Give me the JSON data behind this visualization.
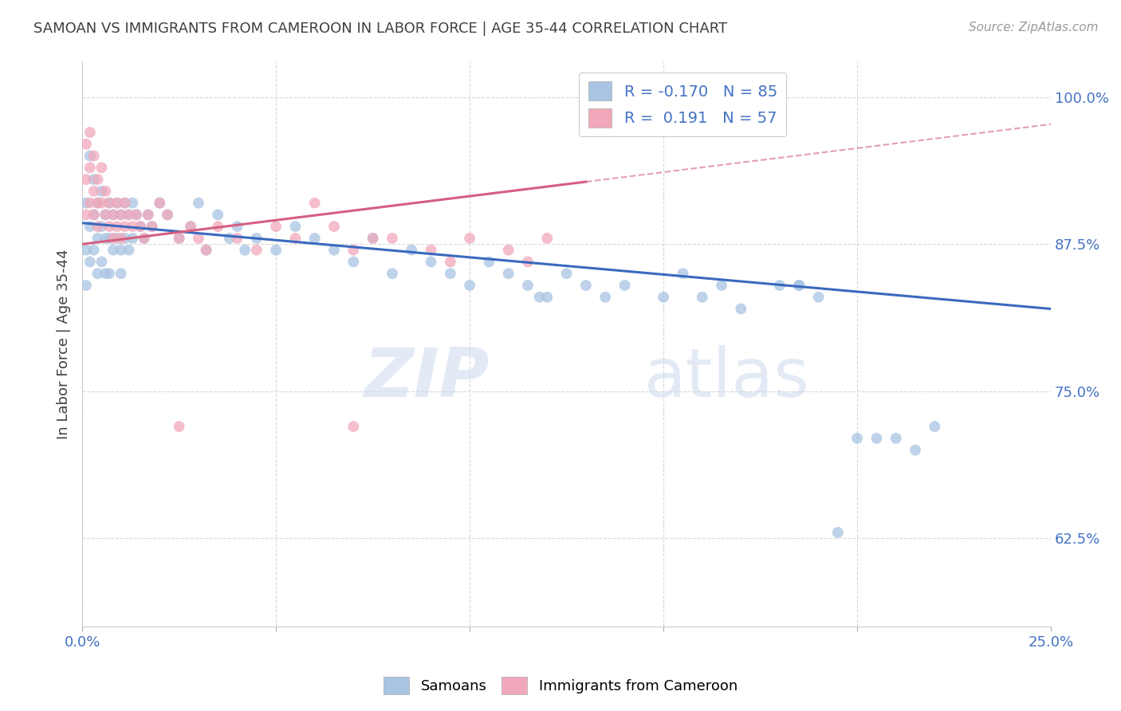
{
  "title": "SAMOAN VS IMMIGRANTS FROM CAMEROON IN LABOR FORCE | AGE 35-44 CORRELATION CHART",
  "source": "Source: ZipAtlas.com",
  "ylabel": "In Labor Force | Age 35-44",
  "blue_r": -0.17,
  "blue_n": 85,
  "pink_r": 0.191,
  "pink_n": 57,
  "legend_label_blue": "Samoans",
  "legend_label_pink": "Immigrants from Cameroon",
  "watermark_zip": "ZIP",
  "watermark_atlas": "atlas",
  "blue_color": "#a8c4e2",
  "pink_color": "#f2a8bb",
  "blue_line_color": "#3a6abf",
  "pink_line_color": "#d45f80",
  "axis_label_color": "#4472c4",
  "title_color": "#404040",
  "xlim": [
    0.0,
    0.25
  ],
  "ylim": [
    0.55,
    1.03
  ],
  "yticks": [
    0.625,
    0.75,
    0.875,
    1.0
  ],
  "ytick_labels": [
    "62.5%",
    "75.0%",
    "87.5%",
    "100.0%"
  ],
  "xticks": [
    0.0,
    0.05,
    0.1,
    0.15,
    0.2,
    0.25
  ],
  "xtick_labels": [
    "0.0%",
    "",
    "",
    "",
    "",
    "25.0%"
  ],
  "blue_x": [
    0.001,
    0.001,
    0.001,
    0.002,
    0.002,
    0.002,
    0.003,
    0.003,
    0.003,
    0.004,
    0.004,
    0.004,
    0.005,
    0.005,
    0.005,
    0.006,
    0.006,
    0.006,
    0.007,
    0.007,
    0.007,
    0.008,
    0.008,
    0.009,
    0.009,
    0.01,
    0.01,
    0.01,
    0.011,
    0.011,
    0.012,
    0.012,
    0.013,
    0.013,
    0.014,
    0.015,
    0.016,
    0.017,
    0.018,
    0.02,
    0.022,
    0.025,
    0.028,
    0.03,
    0.032,
    0.035,
    0.038,
    0.04,
    0.042,
    0.045,
    0.05,
    0.055,
    0.06,
    0.065,
    0.07,
    0.075,
    0.08,
    0.085,
    0.09,
    0.095,
    0.1,
    0.105,
    0.11,
    0.115,
    0.12,
    0.125,
    0.13,
    0.135,
    0.14,
    0.15,
    0.155,
    0.16,
    0.165,
    0.17,
    0.18,
    0.185,
    0.19,
    0.2,
    0.205,
    0.21,
    0.215,
    0.22,
    0.185,
    0.195,
    0.118
  ],
  "blue_y": [
    0.91,
    0.87,
    0.84,
    0.95,
    0.89,
    0.86,
    0.93,
    0.9,
    0.87,
    0.91,
    0.88,
    0.85,
    0.92,
    0.89,
    0.86,
    0.9,
    0.88,
    0.85,
    0.91,
    0.88,
    0.85,
    0.9,
    0.87,
    0.91,
    0.88,
    0.9,
    0.87,
    0.85,
    0.91,
    0.88,
    0.9,
    0.87,
    0.91,
    0.88,
    0.9,
    0.89,
    0.88,
    0.9,
    0.89,
    0.91,
    0.9,
    0.88,
    0.89,
    0.91,
    0.87,
    0.9,
    0.88,
    0.89,
    0.87,
    0.88,
    0.87,
    0.89,
    0.88,
    0.87,
    0.86,
    0.88,
    0.85,
    0.87,
    0.86,
    0.85,
    0.84,
    0.86,
    0.85,
    0.84,
    0.83,
    0.85,
    0.84,
    0.83,
    0.84,
    0.83,
    0.85,
    0.83,
    0.84,
    0.82,
    0.84,
    0.84,
    0.83,
    0.71,
    0.71,
    0.71,
    0.7,
    0.72,
    0.84,
    0.63,
    0.83
  ],
  "pink_x": [
    0.001,
    0.001,
    0.001,
    0.002,
    0.002,
    0.002,
    0.003,
    0.003,
    0.003,
    0.004,
    0.004,
    0.004,
    0.005,
    0.005,
    0.006,
    0.006,
    0.007,
    0.007,
    0.008,
    0.008,
    0.009,
    0.009,
    0.01,
    0.01,
    0.011,
    0.011,
    0.012,
    0.013,
    0.014,
    0.015,
    0.016,
    0.017,
    0.018,
    0.02,
    0.022,
    0.025,
    0.028,
    0.03,
    0.032,
    0.035,
    0.04,
    0.045,
    0.05,
    0.055,
    0.06,
    0.065,
    0.07,
    0.075,
    0.08,
    0.09,
    0.095,
    0.1,
    0.11,
    0.115,
    0.12,
    0.025,
    0.07
  ],
  "pink_y": [
    0.96,
    0.93,
    0.9,
    0.97,
    0.94,
    0.91,
    0.95,
    0.92,
    0.9,
    0.93,
    0.91,
    0.89,
    0.94,
    0.91,
    0.92,
    0.9,
    0.91,
    0.89,
    0.9,
    0.88,
    0.91,
    0.89,
    0.9,
    0.88,
    0.91,
    0.89,
    0.9,
    0.89,
    0.9,
    0.89,
    0.88,
    0.9,
    0.89,
    0.91,
    0.9,
    0.88,
    0.89,
    0.88,
    0.87,
    0.89,
    0.88,
    0.87,
    0.89,
    0.88,
    0.91,
    0.89,
    0.87,
    0.88,
    0.88,
    0.87,
    0.86,
    0.88,
    0.87,
    0.86,
    0.88,
    0.72,
    0.72
  ],
  "background_color": "#ffffff",
  "grid_color": "#d8d8d8",
  "marker_size": 100,
  "pink_line_end_x": 0.13,
  "pink_line_dash_start_x": 0.13
}
